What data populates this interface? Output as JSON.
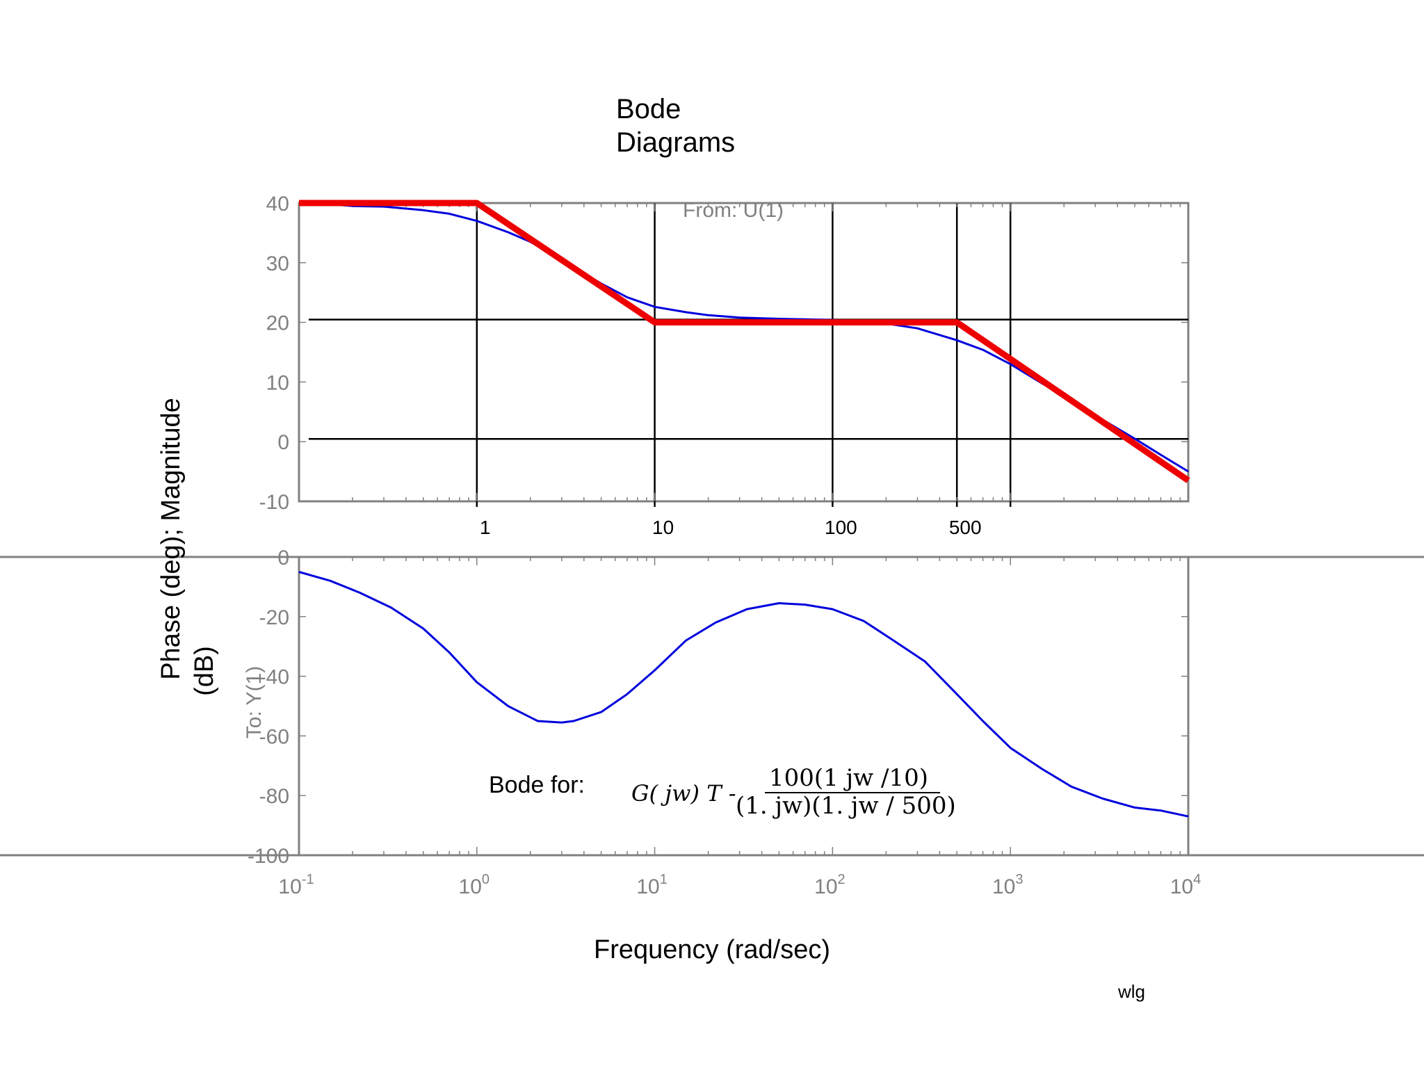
{
  "title_line1": "Bode",
  "title_line2": "Diagrams",
  "from_label": "From: U(1)",
  "to_label": "To: Y(1)",
  "ylabel_line1": "Phase (deg); Magnitude",
  "ylabel_line2": "(dB)",
  "xlabel": "Frequency (rad/sec)",
  "author": "wlg",
  "annotation": {
    "bode_for": "Bode for:",
    "lhs": "G( jw) T -",
    "numerator": "100(1   jw /10)",
    "denominator": "(1.  jw)(1.  jw / 500)"
  },
  "colors": {
    "actual": "#0000dd",
    "asymptote": "#ee0000",
    "axis": "#808080",
    "guide": "#000000"
  },
  "chart_data": [
    {
      "type": "line",
      "panel": "magnitude",
      "xscale": "log",
      "xlim": [
        0.1,
        10000
      ],
      "ylim": [
        -10,
        40
      ],
      "yticks": [
        40,
        30,
        20,
        10,
        0,
        -10
      ],
      "guide_x_labels": [
        {
          "x": 1,
          "label": "1"
        },
        {
          "x": 10,
          "label": "10"
        },
        {
          "x": 100,
          "label": "100"
        },
        {
          "x": 500,
          "label": "500"
        }
      ],
      "guide_vlines": [
        1,
        10,
        100,
        500,
        1000
      ],
      "guide_hlines": [
        20,
        0
      ],
      "series": [
        {
          "role": "actual",
          "x": [
            0.1,
            0.15,
            0.2,
            0.3,
            0.5,
            0.7,
            1,
            1.5,
            2,
            3,
            5,
            7,
            10,
            15,
            20,
            30,
            50,
            70,
            100,
            150,
            200,
            300,
            500,
            700,
            1000,
            1500,
            2000,
            3000,
            5000,
            7000,
            10000
          ],
          "y": [
            40,
            39.8,
            39.5,
            39.4,
            38.8,
            38.2,
            37.0,
            35.1,
            33.5,
            30.5,
            26.5,
            24.2,
            22.6,
            21.7,
            21.2,
            20.8,
            20.6,
            20.5,
            20.4,
            20.2,
            19.8,
            19.0,
            17.0,
            15.4,
            13.0,
            9.8,
            7.6,
            4.4,
            0.5,
            -2.2,
            -5.0
          ]
        },
        {
          "role": "asymptote",
          "x": [
            0.1,
            1,
            10,
            500,
            10000
          ],
          "y": [
            40,
            40,
            20,
            20,
            -6.5
          ]
        }
      ]
    },
    {
      "type": "line",
      "panel": "phase",
      "xscale": "log",
      "xlim": [
        0.1,
        10000
      ],
      "ylim": [
        -100,
        0
      ],
      "yticks": [
        0,
        -20,
        -40,
        -60,
        -80,
        -100
      ],
      "xticks": [
        0.1,
        1,
        10,
        100,
        1000,
        10000
      ],
      "xtick_labels": [
        {
          "base": "10",
          "exp": "-1"
        },
        {
          "base": "10",
          "exp": "0"
        },
        {
          "base": "10",
          "exp": "1"
        },
        {
          "base": "10",
          "exp": "2"
        },
        {
          "base": "10",
          "exp": "3"
        },
        {
          "base": "10",
          "exp": "4"
        }
      ],
      "series": [
        {
          "role": "actual",
          "x": [
            0.1,
            0.15,
            0.22,
            0.33,
            0.5,
            0.7,
            1.0,
            1.5,
            2.2,
            3.0,
            3.5,
            5,
            7,
            10,
            15,
            22,
            33,
            50,
            70,
            100,
            150,
            220,
            330,
            500,
            700,
            1000,
            1500,
            2200,
            3300,
            5000,
            7000,
            10000
          ],
          "y": [
            -5,
            -8,
            -12,
            -17,
            -24,
            -32,
            -42,
            -50,
            -55,
            -55.5,
            -55,
            -52,
            -46,
            -38,
            -28,
            -22,
            -17.5,
            -15.5,
            -16,
            -17.5,
            -21.5,
            -28,
            -35,
            -46,
            -55,
            -64,
            -71,
            -77,
            -81,
            -84,
            -85,
            -87
          ]
        }
      ]
    }
  ]
}
